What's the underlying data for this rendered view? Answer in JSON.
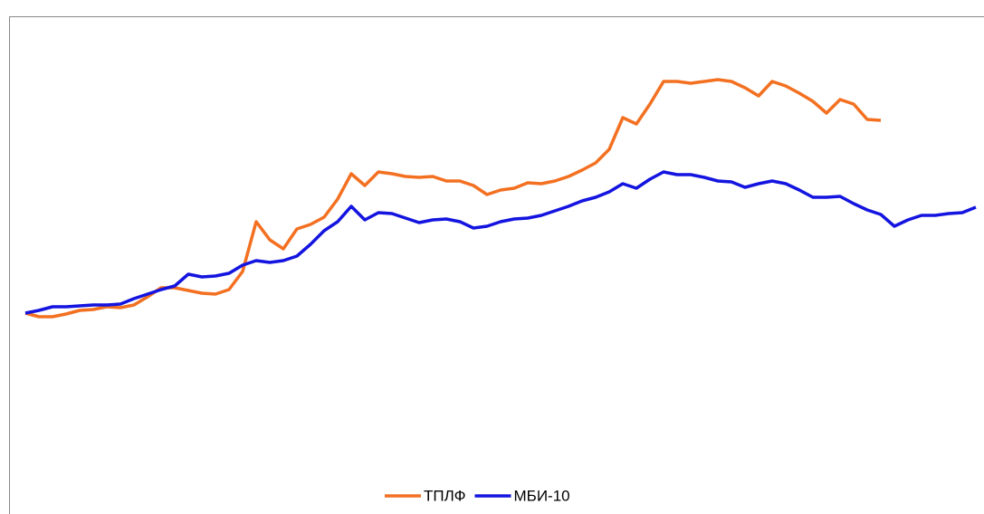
{
  "chart_data": {
    "type": "line",
    "series": [
      {
        "name": "ТПЛФ",
        "color": "#f37021",
        "values": [
          222,
          218,
          218,
          221,
          225,
          226,
          229,
          228,
          231,
          240,
          250,
          250,
          247,
          244,
          243,
          248,
          268,
          323,
          303,
          293,
          315,
          320,
          328,
          348,
          376,
          363,
          378,
          376,
          373,
          372,
          373,
          368,
          368,
          363,
          353,
          358,
          360,
          366,
          365,
          368,
          373,
          380,
          388,
          403,
          438,
          431,
          453,
          478,
          478,
          476,
          478,
          480,
          478,
          471,
          462,
          478,
          473,
          465,
          456,
          443,
          458,
          453,
          436,
          435,
          null,
          null,
          null,
          null,
          null,
          null,
          null
        ]
      },
      {
        "name": "МБИ-10",
        "color": "#1414e0",
        "values": [
          222,
          225,
          229,
          229,
          230,
          231,
          231,
          232,
          238,
          243,
          248,
          252,
          265,
          262,
          263,
          266,
          275,
          280,
          278,
          280,
          285,
          298,
          313,
          323,
          340,
          325,
          333,
          332,
          327,
          322,
          325,
          326,
          323,
          316,
          318,
          323,
          326,
          327,
          330,
          335,
          340,
          346,
          350,
          356,
          365,
          360,
          370,
          378,
          375,
          375,
          372,
          368,
          367,
          361,
          365,
          368,
          365,
          358,
          350,
          350,
          351,
          343,
          336,
          331,
          318,
          325,
          330,
          330,
          332,
          333,
          339
        ]
      }
    ],
    "ylim": [
      0,
      550
    ],
    "legend": "bottom"
  }
}
